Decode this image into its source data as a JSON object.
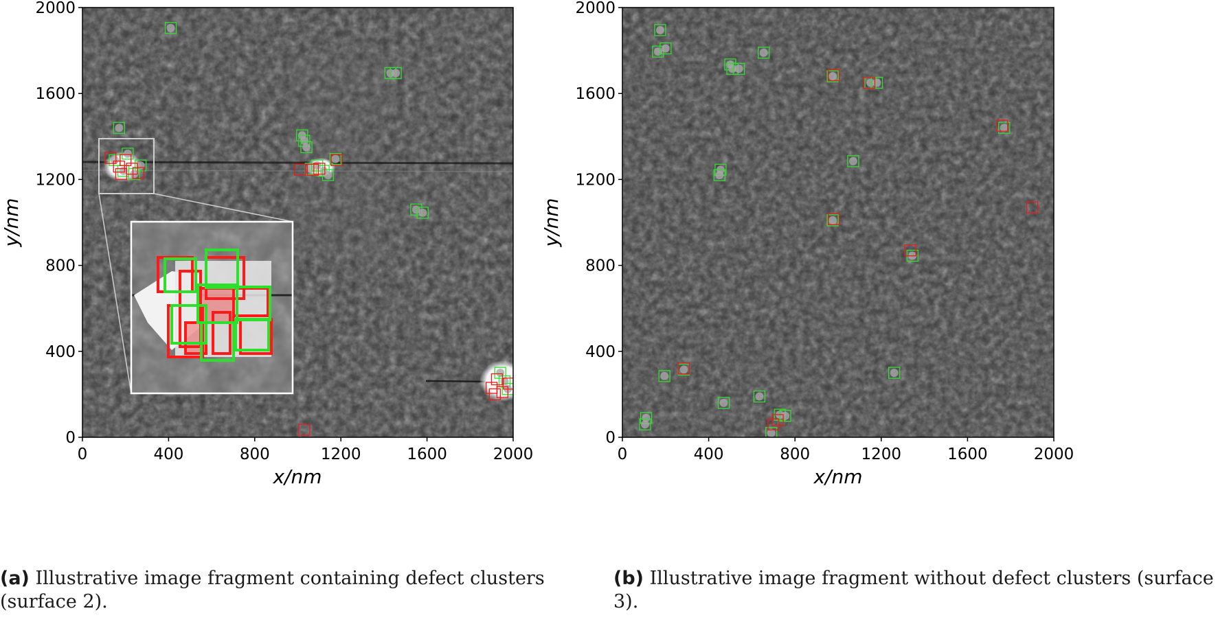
{
  "chart_data": [
    {
      "type": "scatter",
      "panel": "a",
      "xlabel": "x/nm",
      "ylabel": "y/nm",
      "xlim": [
        0,
        2000
      ],
      "ylim": [
        0,
        2000
      ],
      "xticks": [
        "0",
        "400",
        "800",
        "1200",
        "1600",
        "2000"
      ],
      "yticks": [
        "0",
        "400",
        "800",
        "1200",
        "1600",
        "2000"
      ],
      "grid": false,
      "background": "grayscale microscope image",
      "detections_green": [
        {
          "x": 410,
          "y": 1905
        },
        {
          "x": 1430,
          "y": 1695
        },
        {
          "x": 1455,
          "y": 1695
        },
        {
          "x": 170,
          "y": 1440
        },
        {
          "x": 1020,
          "y": 1405
        },
        {
          "x": 1030,
          "y": 1380
        },
        {
          "x": 1040,
          "y": 1350
        },
        {
          "x": 1175,
          "y": 1295
        },
        {
          "x": 1060,
          "y": 1250
        },
        {
          "x": 1090,
          "y": 1265
        },
        {
          "x": 1120,
          "y": 1240
        },
        {
          "x": 1140,
          "y": 1220
        },
        {
          "x": 1550,
          "y": 1060
        },
        {
          "x": 1580,
          "y": 1045
        },
        {
          "x": 150,
          "y": 1290
        },
        {
          "x": 210,
          "y": 1320
        },
        {
          "x": 270,
          "y": 1265
        },
        {
          "x": 190,
          "y": 1240
        },
        {
          "x": 240,
          "y": 1225
        },
        {
          "x": 1940,
          "y": 300
        },
        {
          "x": 1960,
          "y": 260
        },
        {
          "x": 1975,
          "y": 225
        }
      ],
      "detections_red": [
        {
          "x": 1030,
          "y": 35
        },
        {
          "x": 1010,
          "y": 1245
        },
        {
          "x": 1070,
          "y": 1245
        },
        {
          "x": 1180,
          "y": 1290
        },
        {
          "x": 1100,
          "y": 1250
        },
        {
          "x": 130,
          "y": 1300
        },
        {
          "x": 170,
          "y": 1260
        },
        {
          "x": 200,
          "y": 1290
        },
        {
          "x": 230,
          "y": 1250
        },
        {
          "x": 180,
          "y": 1225
        },
        {
          "x": 260,
          "y": 1230
        },
        {
          "x": 1900,
          "y": 230
        },
        {
          "x": 1925,
          "y": 270
        },
        {
          "x": 1950,
          "y": 210
        },
        {
          "x": 1980,
          "y": 250
        },
        {
          "x": 1915,
          "y": 200
        }
      ],
      "inset": {
        "region_x": [
          75,
          330
        ],
        "region_y": [
          1140,
          1395
        ]
      },
      "caption_letter": "(a)",
      "caption_text": " Illustrative image fragment containing defect clusters (surface 2)."
    },
    {
      "type": "scatter",
      "panel": "b",
      "xlabel": "x/nm",
      "ylabel": "y/nm",
      "xlim": [
        0,
        2000
      ],
      "ylim": [
        0,
        2000
      ],
      "xticks": [
        "0",
        "400",
        "800",
        "1200",
        "1600",
        "2000"
      ],
      "yticks": [
        "0",
        "400",
        "800",
        "1200",
        "1600",
        "2000"
      ],
      "grid": false,
      "background": "grayscale microscope image",
      "detections_green": [
        {
          "x": 175,
          "y": 1895
        },
        {
          "x": 165,
          "y": 1795
        },
        {
          "x": 200,
          "y": 1810
        },
        {
          "x": 655,
          "y": 1790
        },
        {
          "x": 500,
          "y": 1735
        },
        {
          "x": 510,
          "y": 1715
        },
        {
          "x": 540,
          "y": 1715
        },
        {
          "x": 975,
          "y": 1680
        },
        {
          "x": 1150,
          "y": 1650
        },
        {
          "x": 1180,
          "y": 1650
        },
        {
          "x": 1770,
          "y": 1440
        },
        {
          "x": 1070,
          "y": 1285
        },
        {
          "x": 455,
          "y": 1245
        },
        {
          "x": 450,
          "y": 1220
        },
        {
          "x": 975,
          "y": 1010
        },
        {
          "x": 1345,
          "y": 845
        },
        {
          "x": 1260,
          "y": 300
        },
        {
          "x": 195,
          "y": 285
        },
        {
          "x": 285,
          "y": 315
        },
        {
          "x": 470,
          "y": 160
        },
        {
          "x": 635,
          "y": 190
        },
        {
          "x": 110,
          "y": 90
        },
        {
          "x": 105,
          "y": 60
        },
        {
          "x": 730,
          "y": 105
        },
        {
          "x": 755,
          "y": 100
        },
        {
          "x": 690,
          "y": 20
        }
      ],
      "detections_red": [
        {
          "x": 980,
          "y": 1685
        },
        {
          "x": 1145,
          "y": 1650
        },
        {
          "x": 1760,
          "y": 1450
        },
        {
          "x": 1900,
          "y": 1070
        },
        {
          "x": 1335,
          "y": 870
        },
        {
          "x": 285,
          "y": 320
        },
        {
          "x": 720,
          "y": 80
        },
        {
          "x": 700,
          "y": 60
        },
        {
          "x": 980,
          "y": 1015
        }
      ],
      "caption_letter": "(b)",
      "caption_text": " Illustrative image fragment without defect clusters (surface 3)."
    }
  ]
}
